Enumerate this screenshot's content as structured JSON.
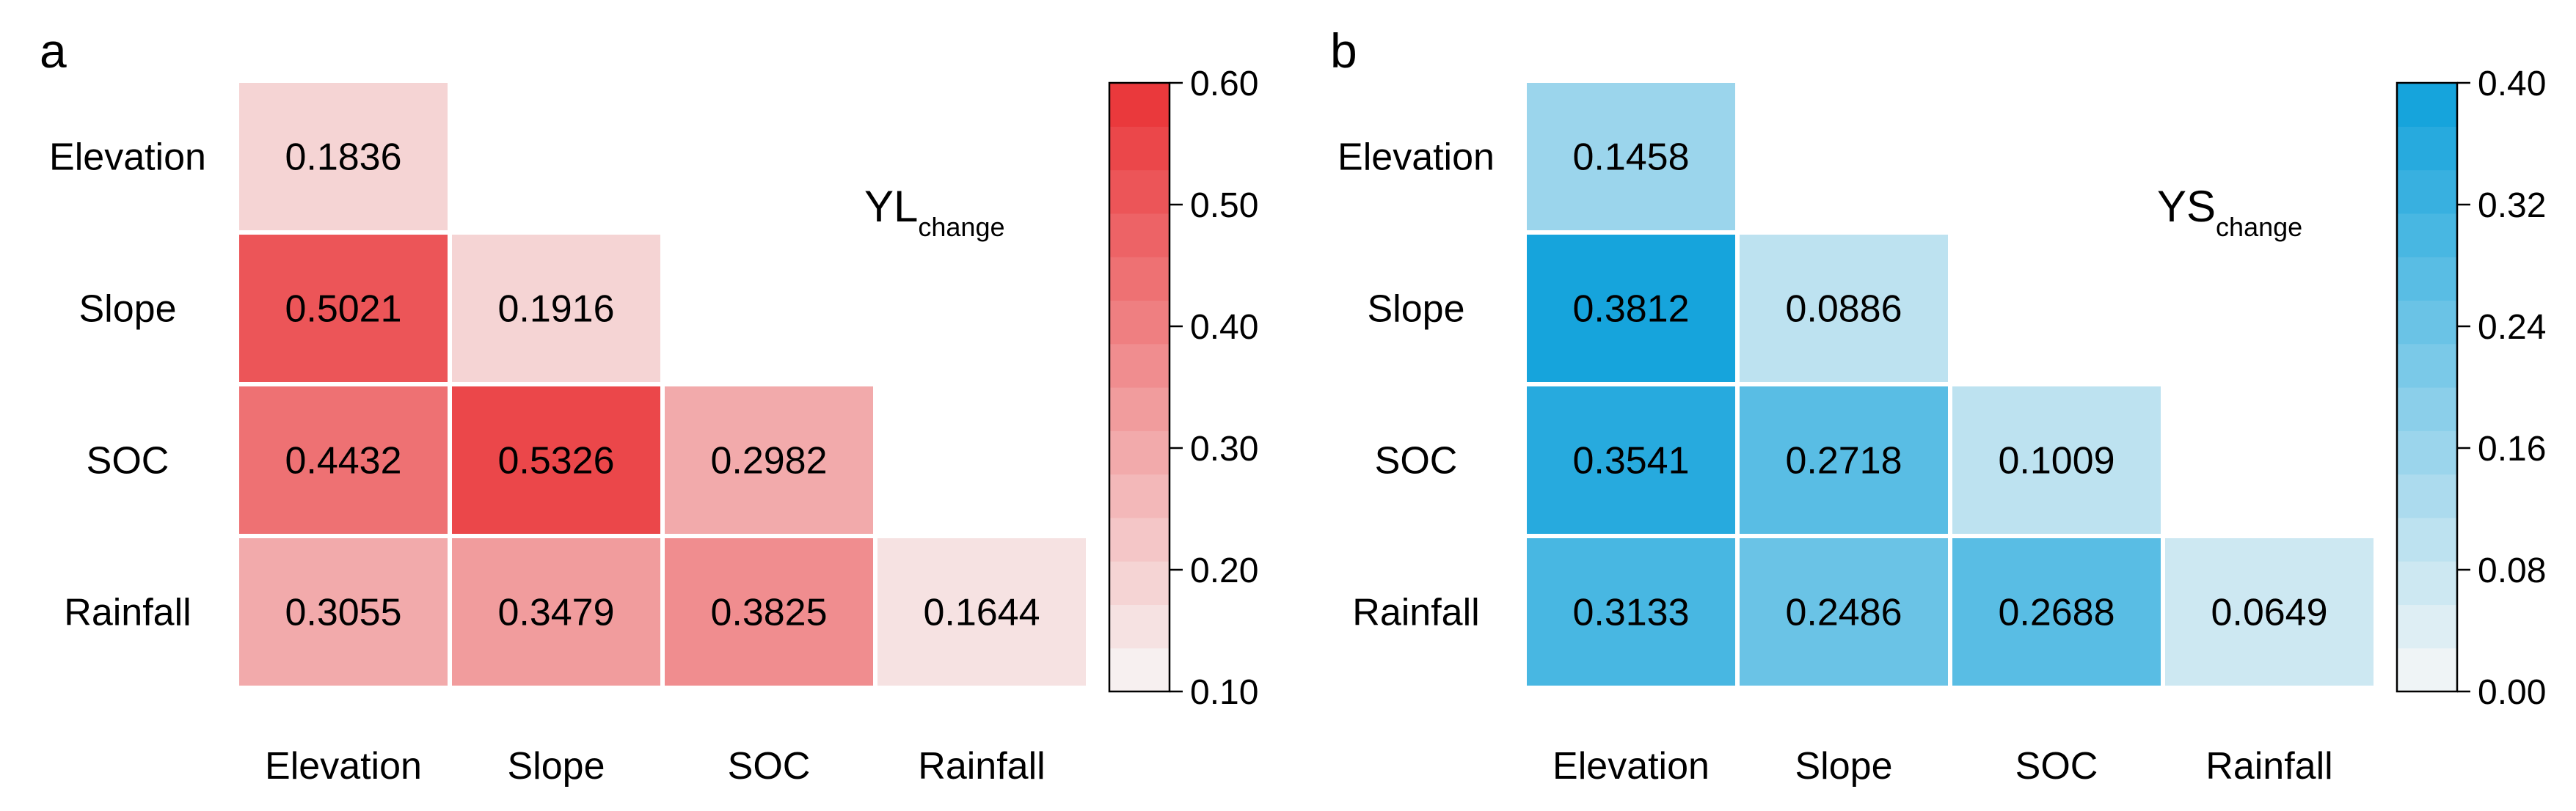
{
  "chart_data": [
    {
      "type": "heatmap",
      "panel_label": "a",
      "indicator": "YL",
      "indicator_subscript": "change",
      "rows": [
        "Elevation",
        "Slope",
        "SOC",
        "Rainfall"
      ],
      "columns": [
        "Elevation",
        "Slope",
        "SOC",
        "Rainfall"
      ],
      "cells": [
        {
          "row": 0,
          "col": 0,
          "value": 0.1836,
          "label": "0.1836"
        },
        {
          "row": 1,
          "col": 0,
          "value": 0.5021,
          "label": "0.5021"
        },
        {
          "row": 1,
          "col": 1,
          "value": 0.1916,
          "label": "0.1916"
        },
        {
          "row": 2,
          "col": 0,
          "value": 0.4432,
          "label": "0.4432"
        },
        {
          "row": 2,
          "col": 1,
          "value": 0.5326,
          "label": "0.5326"
        },
        {
          "row": 2,
          "col": 2,
          "value": 0.2982,
          "label": "0.2982"
        },
        {
          "row": 3,
          "col": 0,
          "value": 0.3055,
          "label": "0.3055"
        },
        {
          "row": 3,
          "col": 1,
          "value": 0.3479,
          "label": "0.3479"
        },
        {
          "row": 3,
          "col": 2,
          "value": 0.3825,
          "label": "0.3825"
        },
        {
          "row": 3,
          "col": 3,
          "value": 0.1644,
          "label": "0.1644"
        }
      ],
      "colorbar": {
        "min": 0.1,
        "max": 0.6,
        "ticks": [
          {
            "value": 0.6,
            "label": "0.60"
          },
          {
            "value": 0.5,
            "label": "0.50"
          },
          {
            "value": 0.4,
            "label": "0.40"
          },
          {
            "value": 0.3,
            "label": "0.30"
          },
          {
            "value": 0.2,
            "label": "0.20"
          },
          {
            "value": 0.1,
            "label": "0.10"
          }
        ],
        "steps": 14,
        "color_low": "#f7f7f7",
        "color_high": "#e93235"
      }
    },
    {
      "type": "heatmap",
      "panel_label": "b",
      "indicator": "YS",
      "indicator_subscript": "change",
      "rows": [
        "Elevation",
        "Slope",
        "SOC",
        "Rainfall"
      ],
      "columns": [
        "Elevation",
        "Slope",
        "SOC",
        "Rainfall"
      ],
      "cells": [
        {
          "row": 0,
          "col": 0,
          "value": 0.1458,
          "label": "0.1458"
        },
        {
          "row": 1,
          "col": 0,
          "value": 0.3812,
          "label": "0.3812"
        },
        {
          "row": 1,
          "col": 1,
          "value": 0.0886,
          "label": "0.0886"
        },
        {
          "row": 2,
          "col": 0,
          "value": 0.3541,
          "label": "0.3541"
        },
        {
          "row": 2,
          "col": 1,
          "value": 0.2718,
          "label": "0.2718"
        },
        {
          "row": 2,
          "col": 2,
          "value": 0.1009,
          "label": "0.1009"
        },
        {
          "row": 3,
          "col": 0,
          "value": 0.3133,
          "label": "0.3133"
        },
        {
          "row": 3,
          "col": 1,
          "value": 0.2486,
          "label": "0.2486"
        },
        {
          "row": 3,
          "col": 2,
          "value": 0.2688,
          "label": "0.2688"
        },
        {
          "row": 3,
          "col": 3,
          "value": 0.0649,
          "label": "0.0649"
        }
      ],
      "colorbar": {
        "min": 0.0,
        "max": 0.4,
        "ticks": [
          {
            "value": 0.4,
            "label": "0.40"
          },
          {
            "value": 0.32,
            "label": "0.32"
          },
          {
            "value": 0.24,
            "label": "0.24"
          },
          {
            "value": 0.16,
            "label": "0.16"
          },
          {
            "value": 0.08,
            "label": "0.08"
          },
          {
            "value": 0.0,
            "label": "0.00"
          }
        ],
        "steps": 14,
        "color_low": "#f7f7f7",
        "color_high": "#0ea1db"
      }
    }
  ]
}
